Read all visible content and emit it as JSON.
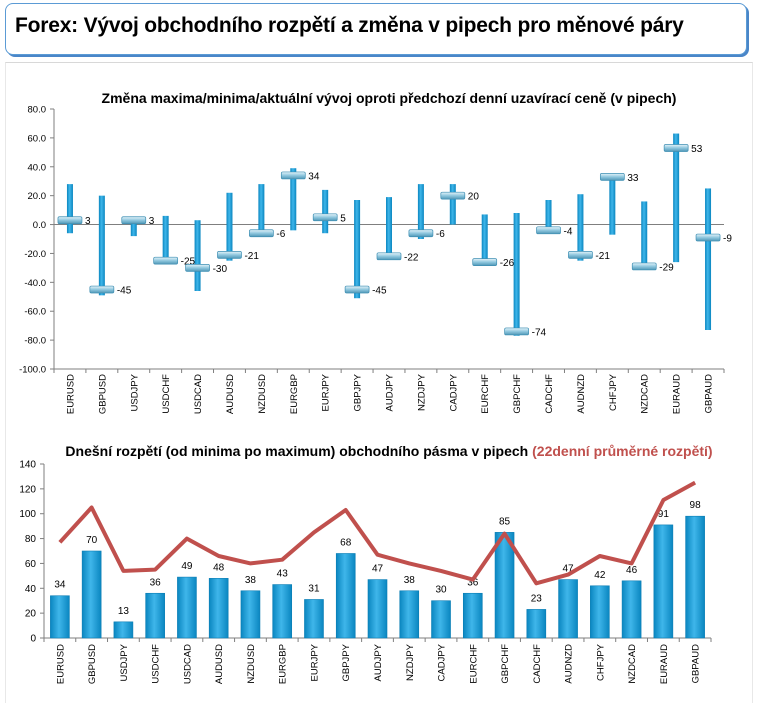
{
  "page": {
    "title": "Forex: Vývoj obchodního rozpětí a změna v pipech pro měnové páry"
  },
  "colors": {
    "bar": "#0f9ad8",
    "bar_light": "#5cc3ee",
    "marker": "#9ecfe3",
    "avg_line": "#c0504d",
    "axis": "#7f7f7f"
  },
  "chart_data": [
    {
      "type": "bar",
      "title": "Změna maxima/minima/aktuální vývoj oproti předchozí denní uzavírací ceně (v pipech)",
      "categories": [
        "EURUSD",
        "GBPUSD",
        "USDJPY",
        "USDCHF",
        "USDCAD",
        "AUDUSD",
        "NZDUSD",
        "EURGBP",
        "EURJPY",
        "GBPJPY",
        "AUDJPY",
        "NZDJPY",
        "CADJPY",
        "EURCHF",
        "GBPCHF",
        "CADCHF",
        "AUDNZD",
        "CHFJPY",
        "NZDCAD",
        "EURAUD",
        "GBPAUD"
      ],
      "high": [
        28,
        20,
        4,
        6,
        3,
        22,
        28,
        39,
        24,
        17,
        19,
        28,
        28,
        7,
        8,
        17,
        21,
        35,
        16,
        63,
        25
      ],
      "low": [
        -6,
        -49,
        -8,
        -27,
        -46,
        -25,
        -7,
        -4,
        -6,
        -51,
        -24,
        -10,
        0,
        -27,
        -77,
        -5,
        -25,
        -7,
        -30,
        -26,
        -73
      ],
      "current": [
        3,
        -45,
        3,
        -25,
        -30,
        -21,
        -6,
        34,
        5,
        -45,
        -22,
        -6,
        20,
        -26,
        -74,
        -4,
        -21,
        33,
        -29,
        53,
        -9
      ],
      "current_labels": [
        "3",
        "-45",
        "3",
        "-25",
        "-30",
        "-21",
        "-6",
        "34",
        "5",
        "-45",
        "-22",
        "-6",
        "20",
        "-26",
        "-74",
        "-4",
        "-21",
        "33",
        "-29",
        "53",
        "-9"
      ],
      "ylim": [
        -100,
        80
      ],
      "yticks": [
        "-100.0",
        "-80.0",
        "-60.0",
        "-40.0",
        "-20.0",
        "0.0",
        "20.0",
        "40.0",
        "60.0",
        "80.0"
      ],
      "ytick_values": [
        -100,
        -80,
        -60,
        -40,
        -20,
        0,
        20,
        40,
        60,
        80
      ],
      "grid": false
    },
    {
      "type": "bar",
      "title": "Dnešní rozpětí (od minima po maximum) obchodního pásma v pipech",
      "title_extra": "(22denní průměrné rozpětí)",
      "categories": [
        "EURUSD",
        "GBPUSD",
        "USDJPY",
        "USDCHF",
        "USDCAD",
        "AUDUSD",
        "NZDUSD",
        "EURGBP",
        "EURJPY",
        "GBPJPY",
        "AUDJPY",
        "NZDJPY",
        "CADJPY",
        "EURCHF",
        "GBPCHF",
        "CADCHF",
        "AUDNZD",
        "CHFJPY",
        "NZDCAD",
        "EURAUD",
        "GBPAUD"
      ],
      "values": [
        34,
        70,
        13,
        36,
        49,
        48,
        38,
        43,
        31,
        68,
        47,
        38,
        30,
        36,
        85,
        23,
        47,
        42,
        46,
        91,
        98
      ],
      "value_labels": [
        "34",
        "70",
        "13",
        "36",
        "49",
        "48",
        "38",
        "43",
        "31",
        "68",
        "47",
        "38",
        "30",
        "36",
        "85",
        "23",
        "47",
        "42",
        "46",
        "91",
        "98"
      ],
      "series": [
        {
          "values": [
            77,
            105,
            54,
            55,
            80,
            66,
            60,
            63,
            85,
            103,
            67,
            60,
            54,
            47,
            84,
            44,
            51,
            66,
            60,
            111,
            125
          ]
        }
      ],
      "ylim": [
        0,
        140
      ],
      "yticks": [
        "0",
        "20",
        "40",
        "60",
        "80",
        "100",
        "120",
        "140"
      ],
      "ytick_values": [
        0,
        20,
        40,
        60,
        80,
        100,
        120,
        140
      ],
      "grid": false
    }
  ]
}
